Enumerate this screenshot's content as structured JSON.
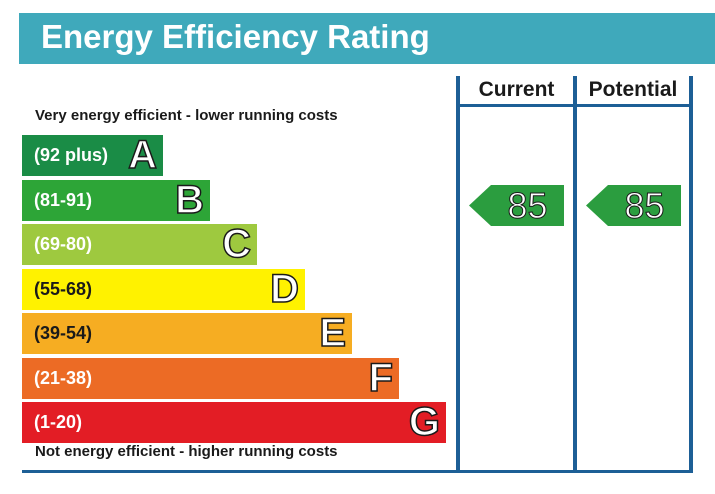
{
  "title": "Energy Efficiency Rating",
  "top_caption": "Very energy efficient - lower running costs",
  "bottom_caption": "Not energy efficient - higher running costs",
  "columns": {
    "current": "Current",
    "potential": "Potential"
  },
  "colors": {
    "title_bar": "#3fa9bb",
    "frame": "#1d5f96",
    "arrow": "#2b9d3f"
  },
  "chart_data": {
    "type": "table",
    "title": "Energy Efficiency Rating",
    "bands": [
      {
        "letter": "A",
        "range": "(92 plus)",
        "color": "#1a8c46"
      },
      {
        "letter": "B",
        "range": "(81-91)",
        "color": "#2da537"
      },
      {
        "letter": "C",
        "range": "(69-80)",
        "color": "#9ec93f"
      },
      {
        "letter": "D",
        "range": "(55-68)",
        "color": "#fff200"
      },
      {
        "letter": "E",
        "range": "(39-54)",
        "color": "#f6ad22"
      },
      {
        "letter": "F",
        "range": "(21-38)",
        "color": "#ec6b25"
      },
      {
        "letter": "G",
        "range": "(1-20)",
        "color": "#e31d25"
      }
    ],
    "current": {
      "value": 85,
      "band": "B"
    },
    "potential": {
      "value": 85,
      "band": "B"
    }
  }
}
